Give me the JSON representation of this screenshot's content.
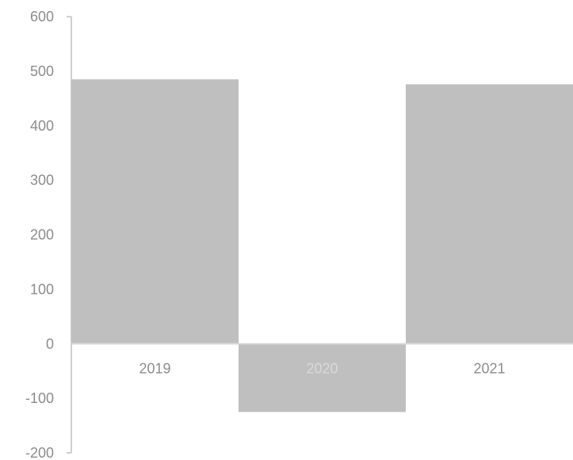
{
  "chart_data": {
    "type": "bar",
    "categories": [
      "2019",
      "2020",
      "2021"
    ],
    "values": [
      485,
      -125,
      476
    ],
    "ylim": [
      -200,
      600
    ],
    "yticks": [
      "600",
      "500",
      "400",
      "300",
      "200",
      "100",
      "0",
      "-100",
      "-200"
    ],
    "title": "",
    "xlabel": "",
    "ylabel": "",
    "grid": false,
    "legend": "none",
    "colors": {
      "bar": "#bfbfbf",
      "axis": "#bfbfbf",
      "zero_line": "#d9d9d9",
      "label": "#8c8c8c",
      "label_on_bar": "#d9d9d9"
    }
  }
}
